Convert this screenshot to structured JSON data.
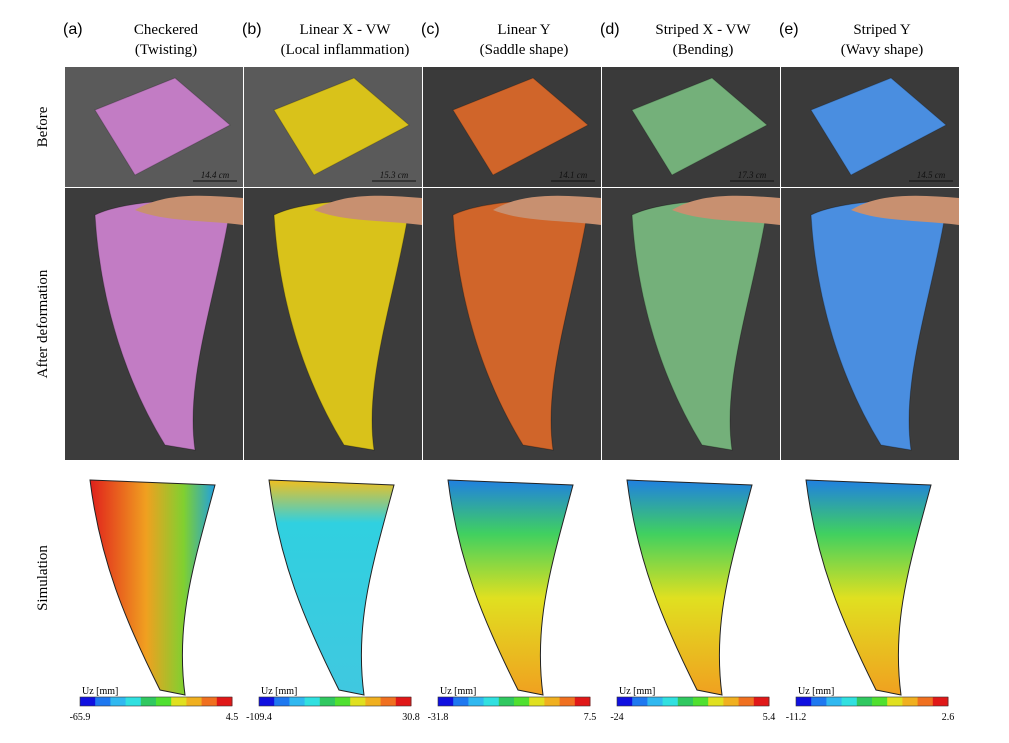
{
  "row_labels": [
    "Before",
    "After deformation",
    "Simulation"
  ],
  "columns": [
    {
      "letter": "(a)",
      "title": "Checkered",
      "subtitle": "(Twisting)",
      "scale": "14.4 cm",
      "color": "#c27cc4",
      "colorbar": {
        "label": "Uz [mm]",
        "min": -65.9,
        "max": 4.5
      }
    },
    {
      "letter": "(b)",
      "title": "Linear X - VW",
      "subtitle": "(Local inflammation)",
      "scale": "15.3 cm",
      "color": "#d9c21a",
      "colorbar": {
        "label": "Uz [mm]",
        "min": -109.4,
        "max": 30.8
      }
    },
    {
      "letter": "(c)",
      "title": "Linear Y",
      "subtitle": "(Saddle shape)",
      "scale": "14.1 cm",
      "color": "#d0652a",
      "colorbar": {
        "label": "Uz [mm]",
        "min": -31.8,
        "max": 7.5
      }
    },
    {
      "letter": "(d)",
      "title": "Striped X - VW",
      "subtitle": "(Bending)",
      "scale": "17.3 cm",
      "color": "#74b07a",
      "colorbar": {
        "label": "Uz [mm]",
        "min": -24,
        "max": 5.4
      }
    },
    {
      "letter": "(e)",
      "title": "Striped Y",
      "subtitle": "(Wavy shape)",
      "scale": "14.5 cm",
      "color": "#4a8ee0",
      "colorbar": {
        "label": "Uz [mm]",
        "min": -11.2,
        "max": 2.6
      }
    }
  ]
}
